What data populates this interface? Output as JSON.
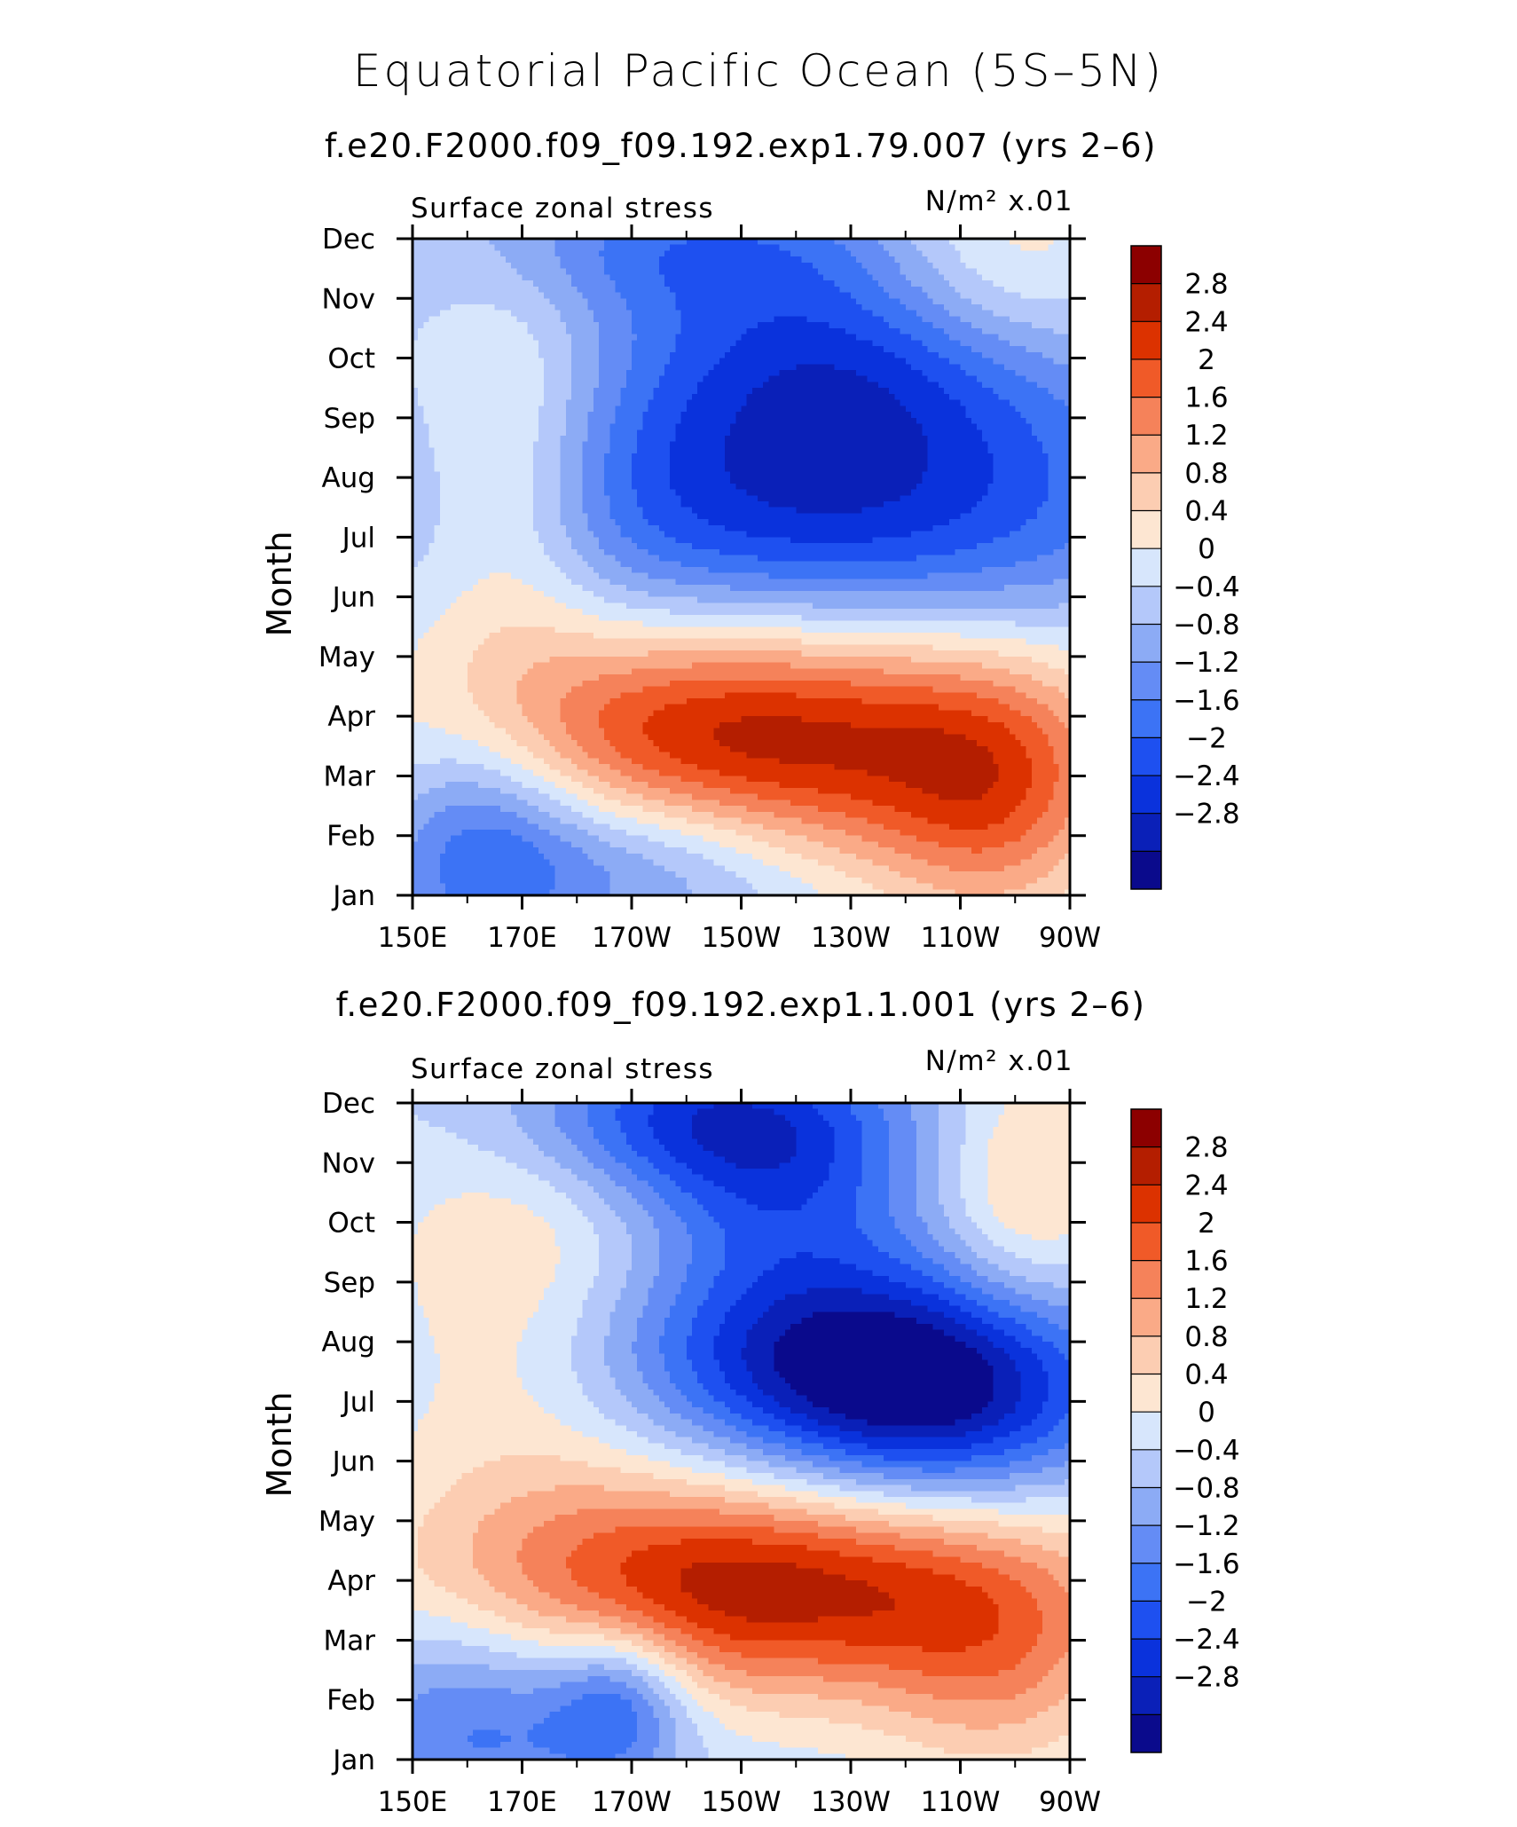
{
  "chart_data": {
    "type": "heatmap",
    "title": "Equatorial Pacific Ocean (5S–5N)",
    "panels": [
      {
        "subtitle": "f.e20.F2000.f09_f09.192.exp1.79.007 (yrs 2–6)",
        "left_label": "Surface zonal stress",
        "right_label": "N/m² x.01",
        "ylabel": "Month",
        "x_ticks": [
          "150E",
          "170E",
          "170W",
          "150W",
          "130W",
          "110W",
          "90W"
        ],
        "y_ticks": [
          "Jan",
          "Feb",
          "Mar",
          "Apr",
          "May",
          "Jun",
          "Jul",
          "Aug",
          "Sep",
          "Oct",
          "Nov",
          "Dec"
        ],
        "xlim": [
          150,
          270
        ],
        "ylim": [
          1,
          12
        ],
        "features": [
          {
            "kind": "max",
            "value": 3.2,
            "lon": 213,
            "month": 3.6,
            "sx": 40,
            "sy": 1.5,
            "rot": -0.5
          },
          {
            "kind": "min",
            "value": -2.4,
            "lon": 225,
            "month": 7.6,
            "sx": 44,
            "sy": 1.7,
            "rot": -0.5
          },
          {
            "kind": "min",
            "value": -1.4,
            "lon": 227,
            "month": 10.0,
            "sx": 28,
            "sy": 1.2,
            "rot": -0.3
          },
          {
            "kind": "min",
            "value": -1.3,
            "lon": 201,
            "month": 11.9,
            "sx": 30,
            "sy": 0.9,
            "rot": 0
          },
          {
            "kind": "min",
            "value": -1.8,
            "lon": 163,
            "month": 2.0,
            "sx": 14,
            "sy": 1.5,
            "rot": 0
          },
          {
            "kind": "min",
            "value": -1.4,
            "lon": 195,
            "month": 1.7,
            "sx": 20,
            "sy": 1.0,
            "rot": 0
          },
          {
            "kind": "max",
            "value": 1.2,
            "lon": 168,
            "month": 8.1,
            "sx": 12,
            "sy": 2.3,
            "rot": 0
          },
          {
            "kind": "max",
            "value": 0.9,
            "lon": 257,
            "month": 11.6,
            "sx": 16,
            "sy": 1.2,
            "rot": 0
          },
          {
            "kind": "max",
            "value": 1.3,
            "lon": 256,
            "month": 2.5,
            "sx": 14,
            "sy": 1.5,
            "rot": 0
          }
        ]
      },
      {
        "subtitle": "f.e20.F2000.f09_f09.192.exp1.1.001 (yrs 2–6)",
        "left_label": "Surface zonal stress",
        "right_label": "N/m² x.01",
        "ylabel": "Month",
        "x_ticks": [
          "150E",
          "170E",
          "170W",
          "150W",
          "130W",
          "110W",
          "90W"
        ],
        "y_ticks": [
          "Jan",
          "Feb",
          "Mar",
          "Apr",
          "May",
          "Jun",
          "Jul",
          "Aug",
          "Sep",
          "Oct",
          "Nov",
          "Dec"
        ],
        "xlim": [
          150,
          270
        ],
        "ylim": [
          1,
          12
        ],
        "features": [
          {
            "kind": "max",
            "value": 3.1,
            "lon": 213,
            "month": 3.9,
            "sx": 40,
            "sy": 1.3,
            "rot": -0.4
          },
          {
            "kind": "min",
            "value": -2.5,
            "lon": 244,
            "month": 7.0,
            "sx": 24,
            "sy": 1.3,
            "rot": -0.3
          },
          {
            "kind": "min",
            "value": -1.7,
            "lon": 222,
            "month": 7.9,
            "sx": 32,
            "sy": 1.2,
            "rot": -0.2
          },
          {
            "kind": "min",
            "value": -2.0,
            "lon": 200,
            "month": 11.8,
            "sx": 26,
            "sy": 1.0,
            "rot": 0
          },
          {
            "kind": "min",
            "value": -1.3,
            "lon": 218,
            "month": 10.5,
            "sx": 18,
            "sy": 1.3,
            "rot": 0
          },
          {
            "kind": "min",
            "value": -1.5,
            "lon": 163,
            "month": 1.8,
            "sx": 18,
            "sy": 1.4,
            "rot": 0
          },
          {
            "kind": "min",
            "value": -1.6,
            "lon": 188,
            "month": 2.0,
            "sx": 9,
            "sy": 0.9,
            "rot": 0
          },
          {
            "kind": "max",
            "value": 0.9,
            "lon": 170,
            "month": 9.0,
            "sx": 18,
            "sy": 3.0,
            "rot": 0
          },
          {
            "kind": "max",
            "value": 1.0,
            "lon": 262,
            "month": 10.5,
            "sx": 11,
            "sy": 1.6,
            "rot": 0
          },
          {
            "kind": "max",
            "value": 1.1,
            "lon": 257,
            "month": 2.5,
            "sx": 16,
            "sy": 1.4,
            "rot": 0
          }
        ]
      }
    ],
    "colorbar": {
      "levels": [
        -2.8,
        -2.4,
        -2,
        -1.6,
        -1.2,
        -0.8,
        -0.4,
        0,
        0.4,
        0.8,
        1.2,
        1.6,
        2,
        2.4,
        2.8
      ],
      "labels": [
        "2.8",
        "2.4",
        "2",
        "1.6",
        "1.2",
        "0.8",
        "0.4",
        "0",
        "−0.4",
        "−0.8",
        "−1.2",
        "−1.6",
        "−2",
        "−2.4",
        "−2.8"
      ],
      "colors": [
        "#0a0a8c",
        "#0a20b8",
        "#0a32dc",
        "#1e50f0",
        "#3c73f5",
        "#648cf5",
        "#8cabf5",
        "#b4c8fa",
        "#d7e6fc",
        "#fde6d2",
        "#fccdb2",
        "#faaa87",
        "#f5825a",
        "#f05a28",
        "#dc3200",
        "#b41e00",
        "#8c0000"
      ]
    }
  }
}
